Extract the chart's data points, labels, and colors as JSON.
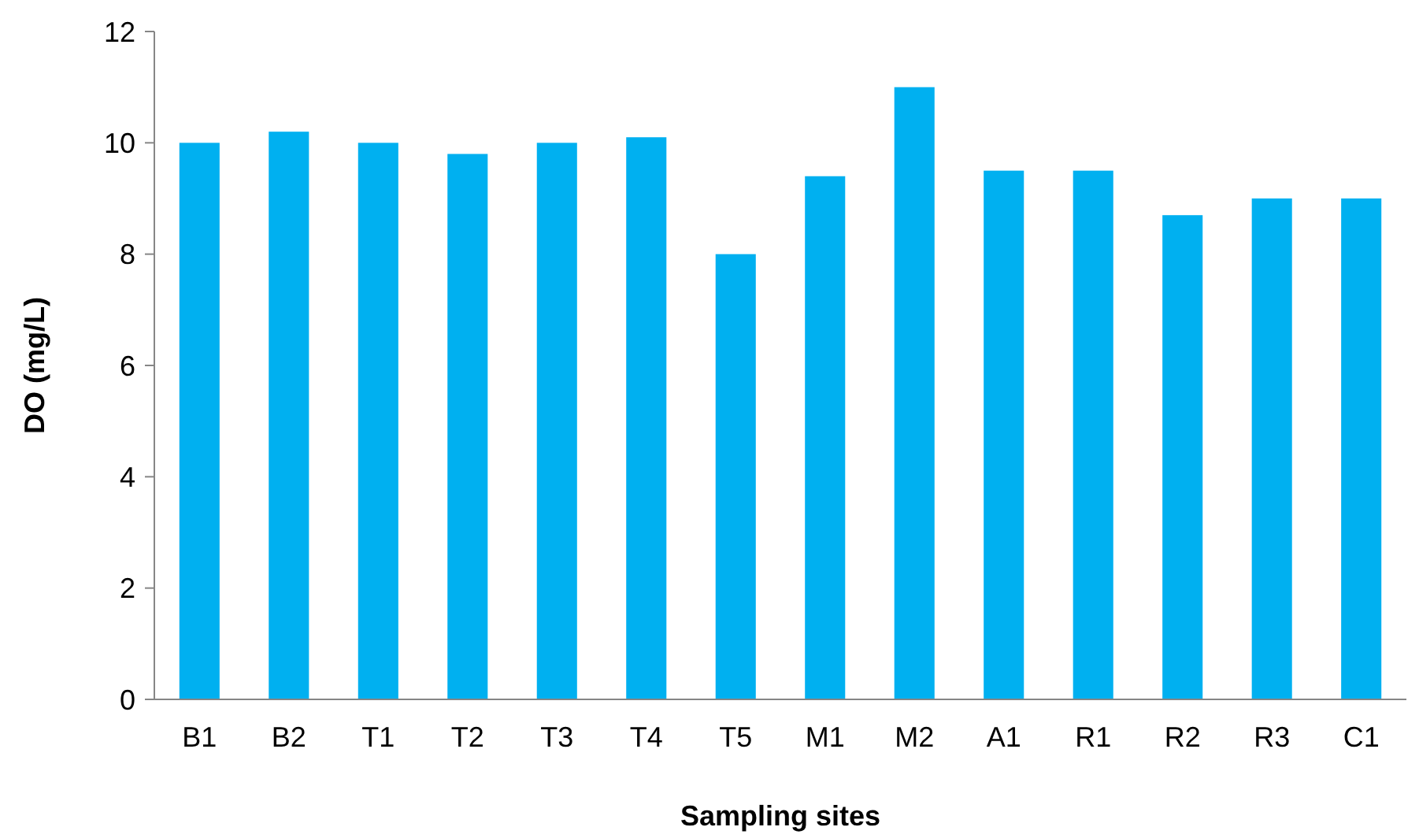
{
  "chart_data": {
    "type": "bar",
    "xlabel": "Sampling sites",
    "ylabel": "DO (mg/L)",
    "categories": [
      "B1",
      "B2",
      "T1",
      "T2",
      "T3",
      "T4",
      "T5",
      "M1",
      "M2",
      "A1",
      "R1",
      "R2",
      "R3",
      "C1"
    ],
    "values": [
      10,
      10.2,
      10,
      9.8,
      10,
      10.1,
      8,
      9.4,
      11,
      9.5,
      9.5,
      8.7,
      9,
      9
    ],
    "color": "#00b0f0",
    "ylim": [
      0,
      12
    ],
    "yticks": [
      0,
      2,
      4,
      6,
      8,
      10,
      12
    ]
  }
}
